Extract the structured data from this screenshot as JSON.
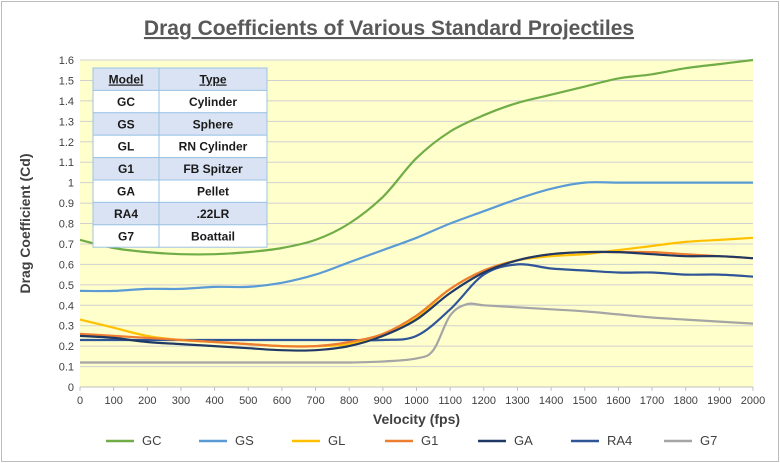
{
  "chart_data": {
    "type": "line",
    "title": "Drag Coefficients of Various Standard Projectiles",
    "xlabel": "Velocity (fps)",
    "ylabel": "Drag Coefficient (Cd)",
    "xlim": [
      0,
      2000
    ],
    "ylim": [
      0,
      1.6
    ],
    "xticks": [
      "0",
      "100",
      "200",
      "300",
      "400",
      "500",
      "600",
      "700",
      "800",
      "900",
      "1000",
      "1100",
      "1200",
      "1300",
      "1400",
      "1500",
      "1600",
      "1700",
      "1800",
      "1900",
      "2000"
    ],
    "yticks": [
      "0",
      "0.1",
      "0.2",
      "0.3",
      "0.4",
      "0.5",
      "0.6",
      "0.7",
      "0.8",
      "0.9",
      "1",
      "1.1",
      "1.2",
      "1.3",
      "1.4",
      "1.5",
      "1.6"
    ],
    "grid": "horizontal",
    "legend_position": "bottom",
    "series": [
      {
        "name": "GC",
        "color": "#70ad47",
        "x": [
          0,
          100,
          200,
          300,
          400,
          500,
          600,
          700,
          800,
          900,
          1000,
          1100,
          1200,
          1300,
          1400,
          1500,
          1600,
          1700,
          1800,
          1900,
          2000
        ],
        "y": [
          0.72,
          0.68,
          0.66,
          0.65,
          0.65,
          0.66,
          0.68,
          0.72,
          0.8,
          0.93,
          1.12,
          1.25,
          1.33,
          1.39,
          1.43,
          1.47,
          1.51,
          1.53,
          1.56,
          1.58,
          1.6
        ]
      },
      {
        "name": "GS",
        "color": "#5b9bd5",
        "x": [
          0,
          100,
          200,
          300,
          400,
          500,
          600,
          700,
          800,
          900,
          1000,
          1100,
          1200,
          1300,
          1400,
          1500,
          1600,
          1700,
          1800,
          1900,
          2000
        ],
        "y": [
          0.47,
          0.47,
          0.48,
          0.48,
          0.49,
          0.49,
          0.51,
          0.55,
          0.61,
          0.67,
          0.73,
          0.8,
          0.86,
          0.92,
          0.97,
          1.0,
          1.0,
          1.0,
          1.0,
          1.0,
          1.0
        ]
      },
      {
        "name": "GL",
        "color": "#ffc000",
        "x": [
          0,
          100,
          200,
          300,
          400,
          500,
          600,
          700,
          800,
          900,
          1000,
          1100,
          1200,
          1300,
          1400,
          1500,
          1600,
          1700,
          1800,
          1900,
          2000
        ],
        "y": [
          0.33,
          0.29,
          0.25,
          0.23,
          0.22,
          0.21,
          0.2,
          0.2,
          0.21,
          0.25,
          0.34,
          0.48,
          0.57,
          0.62,
          0.64,
          0.65,
          0.67,
          0.69,
          0.71,
          0.72,
          0.73
        ]
      },
      {
        "name": "G1",
        "color": "#ed7d31",
        "x": [
          0,
          100,
          200,
          300,
          400,
          500,
          600,
          700,
          800,
          900,
          1000,
          1100,
          1200,
          1300,
          1400,
          1500,
          1600,
          1700,
          1800,
          1900,
          2000
        ],
        "y": [
          0.26,
          0.25,
          0.24,
          0.23,
          0.22,
          0.21,
          0.2,
          0.2,
          0.22,
          0.26,
          0.35,
          0.48,
          0.57,
          0.62,
          0.65,
          0.66,
          0.66,
          0.66,
          0.65,
          0.64,
          0.63
        ]
      },
      {
        "name": "GA",
        "color": "#203864",
        "x": [
          0,
          100,
          200,
          300,
          400,
          500,
          600,
          700,
          800,
          900,
          1000,
          1100,
          1200,
          1300,
          1400,
          1500,
          1600,
          1700,
          1800,
          1900,
          2000
        ],
        "y": [
          0.25,
          0.24,
          0.22,
          0.21,
          0.2,
          0.19,
          0.18,
          0.18,
          0.2,
          0.25,
          0.33,
          0.46,
          0.56,
          0.62,
          0.65,
          0.66,
          0.66,
          0.65,
          0.64,
          0.64,
          0.63
        ]
      },
      {
        "name": "RA4",
        "color": "#2f5597",
        "x": [
          0,
          100,
          200,
          300,
          400,
          500,
          600,
          700,
          800,
          900,
          1000,
          1100,
          1200,
          1300,
          1400,
          1500,
          1600,
          1700,
          1800,
          1900,
          2000
        ],
        "y": [
          0.23,
          0.23,
          0.23,
          0.23,
          0.23,
          0.23,
          0.23,
          0.23,
          0.23,
          0.23,
          0.25,
          0.38,
          0.55,
          0.6,
          0.58,
          0.57,
          0.56,
          0.56,
          0.55,
          0.55,
          0.54
        ]
      },
      {
        "name": "G7",
        "color": "#a5a5a5",
        "x": [
          0,
          100,
          200,
          300,
          400,
          500,
          600,
          700,
          800,
          900,
          1000,
          1050,
          1100,
          1150,
          1200,
          1300,
          1400,
          1500,
          1600,
          1700,
          1800,
          1900,
          2000
        ],
        "y": [
          0.12,
          0.12,
          0.12,
          0.12,
          0.12,
          0.12,
          0.12,
          0.12,
          0.12,
          0.125,
          0.14,
          0.18,
          0.35,
          0.405,
          0.4,
          0.39,
          0.38,
          0.37,
          0.355,
          0.34,
          0.33,
          0.32,
          0.31
        ]
      }
    ]
  },
  "legend_table": {
    "header": {
      "model": "Model",
      "type": "Type"
    },
    "rows": [
      {
        "model": "GC",
        "type": "Cylinder"
      },
      {
        "model": "GS",
        "type": "Sphere"
      },
      {
        "model": "GL",
        "type": "RN Cylinder"
      },
      {
        "model": "G1",
        "type": "FB Spitzer"
      },
      {
        "model": "GA",
        "type": "Pellet"
      },
      {
        "model": "RA4",
        "type": ".22LR"
      },
      {
        "model": "G7",
        "type": "Boattail"
      }
    ]
  },
  "colors": {
    "plot_background": "#ffffcc",
    "table_header": "#dae3f3",
    "table_row_alt": "#dae3f3",
    "table_border": "#9dc3e6"
  }
}
